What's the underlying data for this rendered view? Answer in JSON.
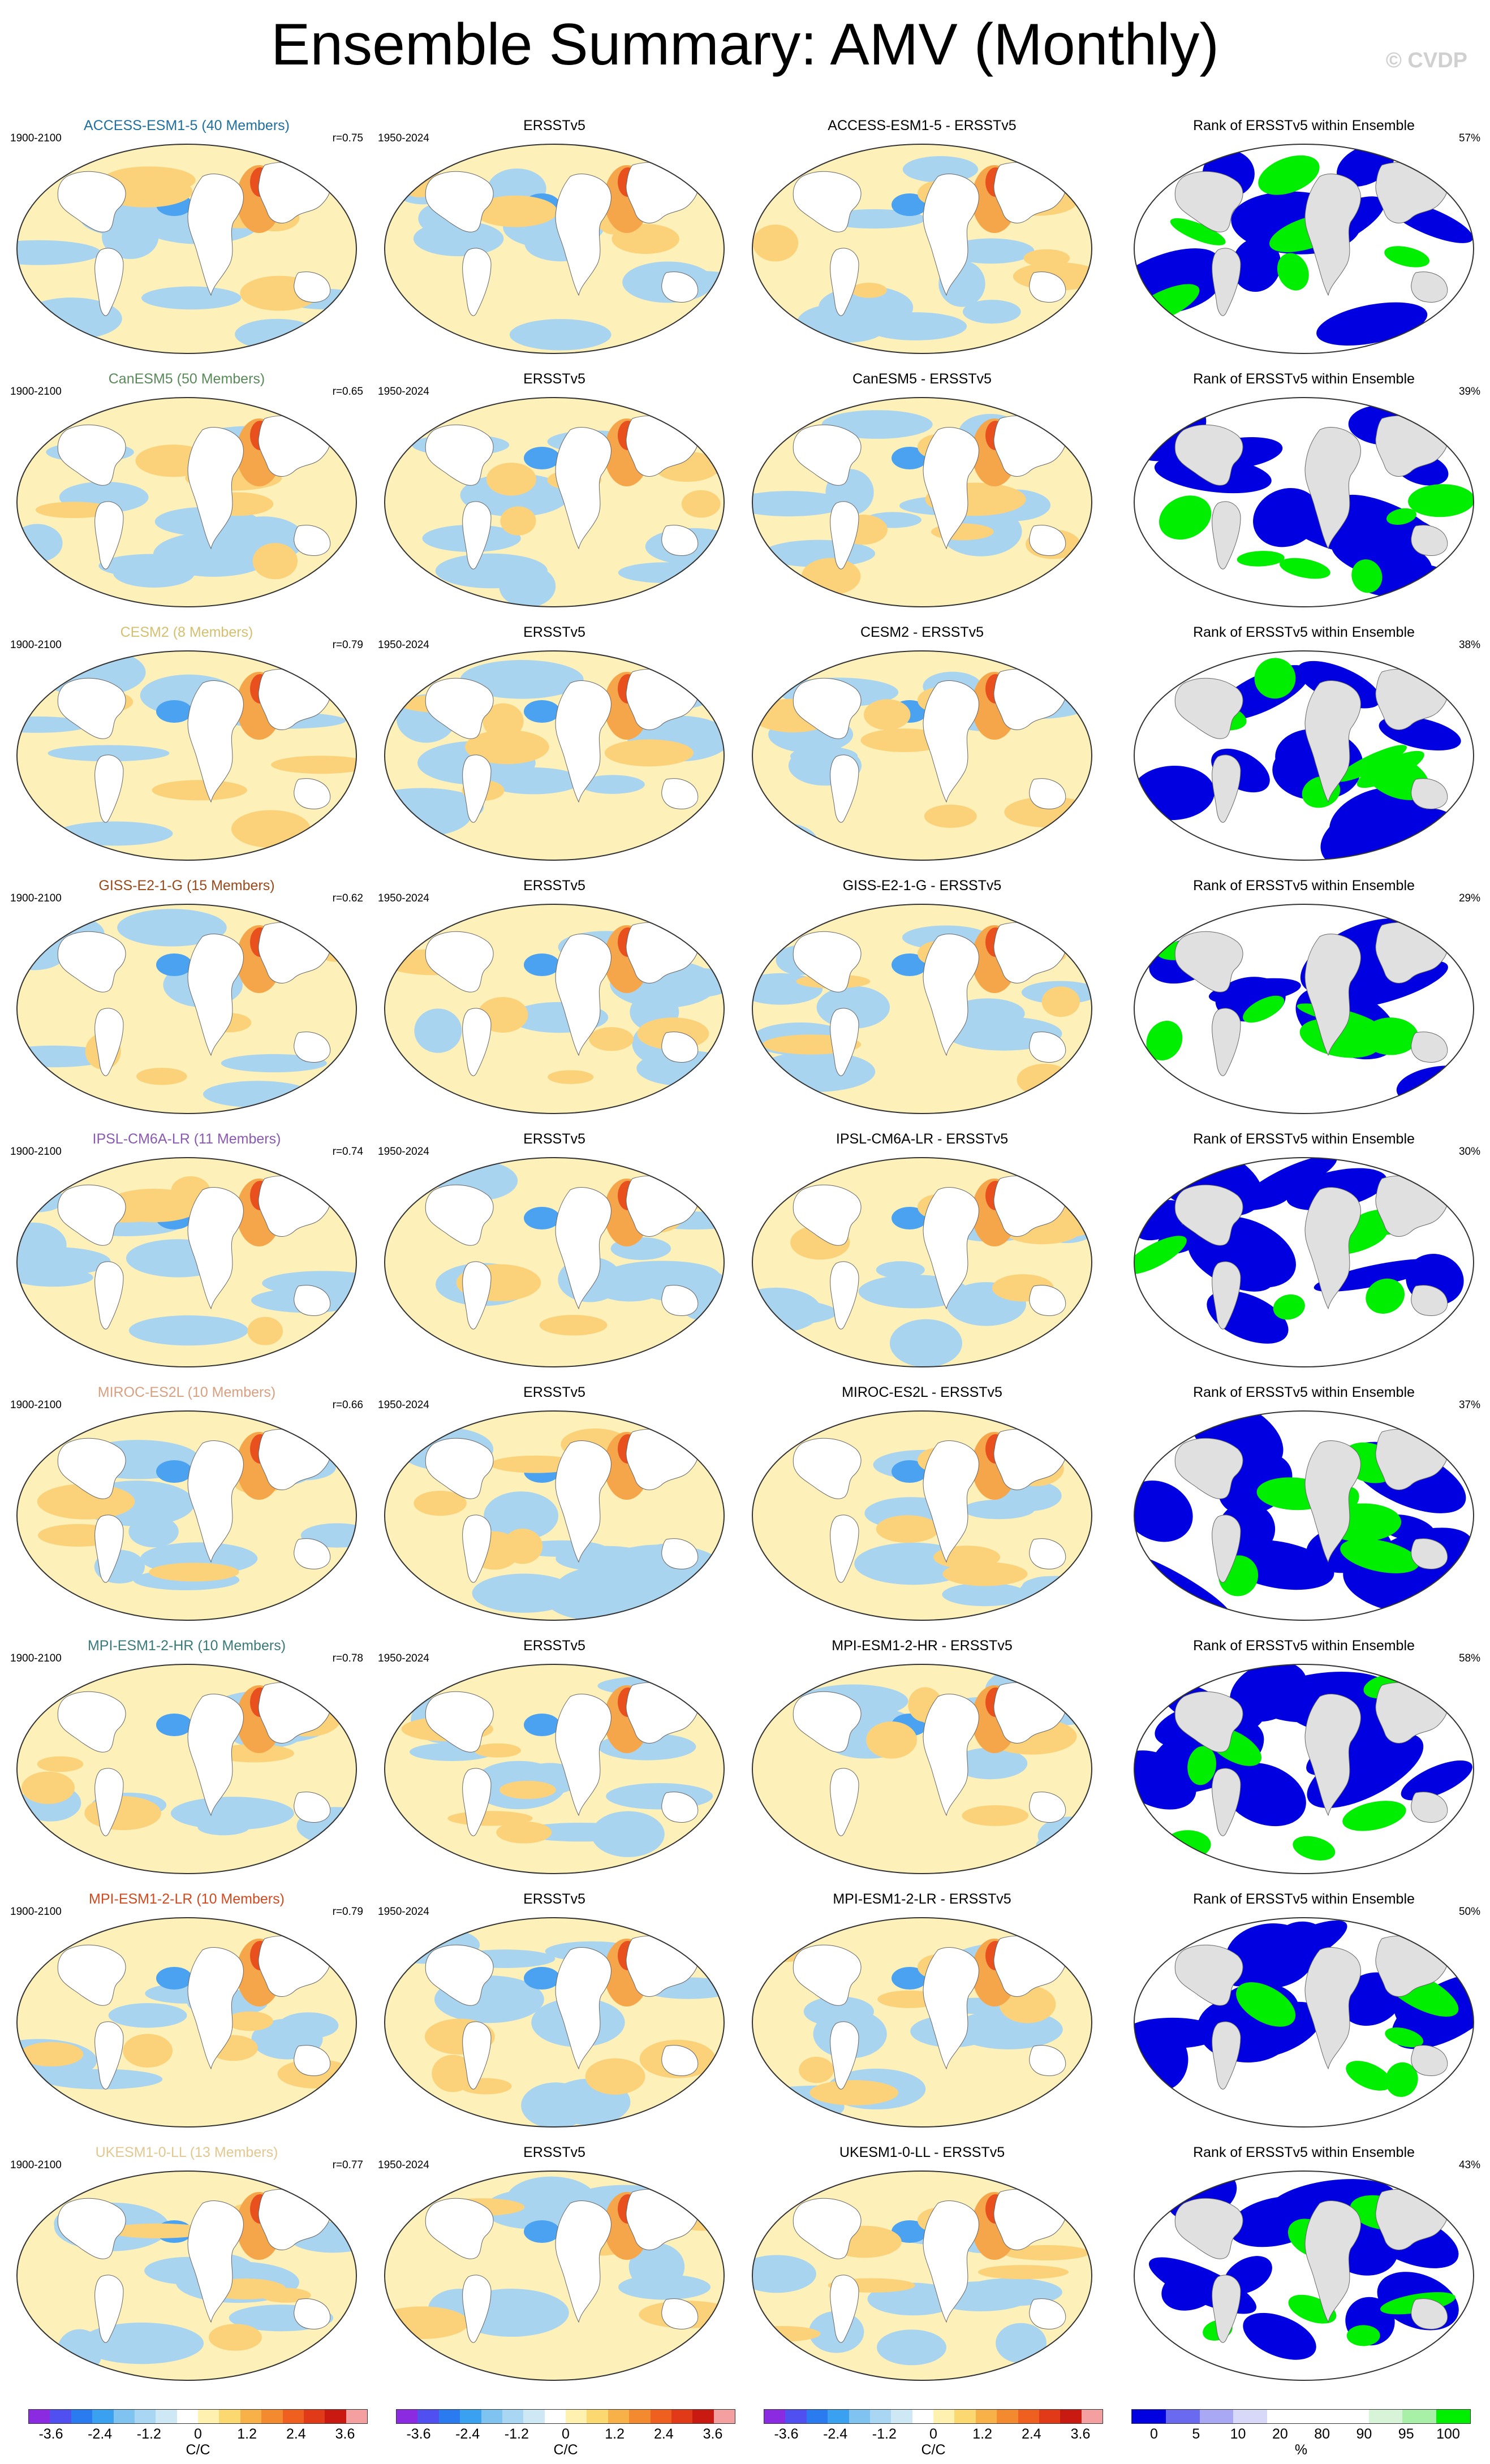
{
  "title": "Ensemble Summary: AMV (Monthly)",
  "watermark": "© CVDP",
  "columns": {
    "obs_title": "ERSSTv5",
    "diff_suffix": " - ERSSTv5",
    "rank_title": "Rank of ERSSTv5 within Ensemble",
    "model_period": "1900-2100",
    "obs_period": "1950-2024"
  },
  "rows": [
    {
      "model": "ACCESS-ESM1-5",
      "label": "ACCESS-ESM1-5 (40 Members)",
      "label_color": "#1f6f9f",
      "r": "r=0.75",
      "rank_pct": "57%"
    },
    {
      "model": "CanESM5",
      "label": "CanESM5 (50 Members)",
      "label_color": "#5a8a5a",
      "r": "r=0.65",
      "rank_pct": "39%"
    },
    {
      "model": "CESM2",
      "label": "CESM2 (8 Members)",
      "label_color": "#d4c070",
      "r": "r=0.79",
      "rank_pct": "38%"
    },
    {
      "model": "GISS-E2-1-G",
      "label": "GISS-E2-1-G (15 Members)",
      "label_color": "#9a4a1a",
      "r": "r=0.62",
      "rank_pct": "29%"
    },
    {
      "model": "IPSL-CM6A-LR",
      "label": "IPSL-CM6A-LR (11 Members)",
      "label_color": "#8a5ab0",
      "r": "r=0.74",
      "rank_pct": "30%"
    },
    {
      "model": "MIROC-ES2L",
      "label": "MIROC-ES2L (10 Members)",
      "label_color": "#d8a080",
      "r": "r=0.66",
      "rank_pct": "37%"
    },
    {
      "model": "MPI-ESM1-2-HR",
      "label": "MPI-ESM1-2-HR (10 Members)",
      "label_color": "#3a7a7a",
      "r": "r=0.78",
      "rank_pct": "58%"
    },
    {
      "model": "MPI-ESM1-2-LR",
      "label": "MPI-ESM1-2-LR (10 Members)",
      "label_color": "#d04a20",
      "r": "r=0.79",
      "rank_pct": "50%"
    },
    {
      "model": "UKESM1-0-LL",
      "label": "UKESM1-0-LL (13 Members)",
      "label_color": "#e0c890",
      "r": "r=0.77",
      "rank_pct": "43%"
    }
  ],
  "colorbars": {
    "anomaly": {
      "ticks": [
        "-3.6",
        "-2.4",
        "-1.2",
        "0",
        "1.2",
        "2.4",
        "3.6"
      ],
      "label": "C/C",
      "colors": [
        "#8a2be2",
        "#5050f0",
        "#2a7af0",
        "#3aa0f0",
        "#7fc4f0",
        "#a9d6f2",
        "#cfe8f6",
        "#ffffff",
        "#fff2b0",
        "#fcd870",
        "#f8b048",
        "#f48a30",
        "#ef6020",
        "#e03a18",
        "#c81a10",
        "#f4a0a0"
      ]
    },
    "rank": {
      "ticks": [
        "0",
        "5",
        "10",
        "20",
        "80",
        "90",
        "95",
        "100"
      ],
      "label": "%",
      "colors": [
        "#0000e0",
        "#6a6af0",
        "#a8a8f4",
        "#d8d8f8",
        "#ffffff",
        "#ffffff",
        "#ffffff",
        "#d8f4d8",
        "#a8f0a8",
        "#00ee00"
      ]
    }
  },
  "palette": {
    "cold_strong": "#4aa2f0",
    "cold": "#a9d4f0",
    "neutral": "#fdf0b8",
    "warm": "#fbd27a",
    "warm2": "#f6a64a",
    "hot": "#e8501e",
    "rank_low": "#0000e0",
    "rank_high": "#00ee00",
    "land": "#e0e0e0"
  }
}
